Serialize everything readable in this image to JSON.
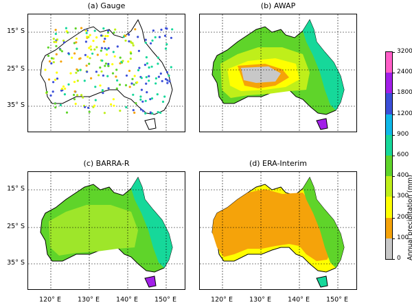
{
  "chart_data": [
    {
      "type": "heatmap",
      "title": "(a) Gauge",
      "lat_ticks": [
        "15° S",
        "25° S",
        "35° S"
      ],
      "lon_ticks": []
    },
    {
      "type": "heatmap",
      "title": "(b) AWAP",
      "lat_ticks": [],
      "lon_ticks": []
    },
    {
      "type": "heatmap",
      "title": "(c) BARRA-R",
      "lat_ticks": [
        "15° S",
        "25° S",
        "35° S"
      ],
      "lon_ticks": [
        "120° E",
        "130° E",
        "140° E",
        "150° E"
      ]
    },
    {
      "type": "heatmap",
      "title": "(d) ERA-Interim",
      "lat_ticks": [],
      "lon_ticks": [
        "120° E",
        "130° E",
        "140° E",
        "150° E"
      ]
    }
  ],
  "colorbar": {
    "label": "Annual precipitation (mm)",
    "ticks": [
      "0",
      "100",
      "200",
      "300",
      "400",
      "600",
      "900",
      "1200",
      "1800",
      "2400",
      "3200"
    ],
    "colors": [
      "#c8c8c8",
      "#f5a30a",
      "#ffff00",
      "#bfef1a",
      "#5fd42a",
      "#16d89a",
      "#0fb8e8",
      "#3b4fd8",
      "#a21fe8",
      "#ff5ec8"
    ]
  }
}
